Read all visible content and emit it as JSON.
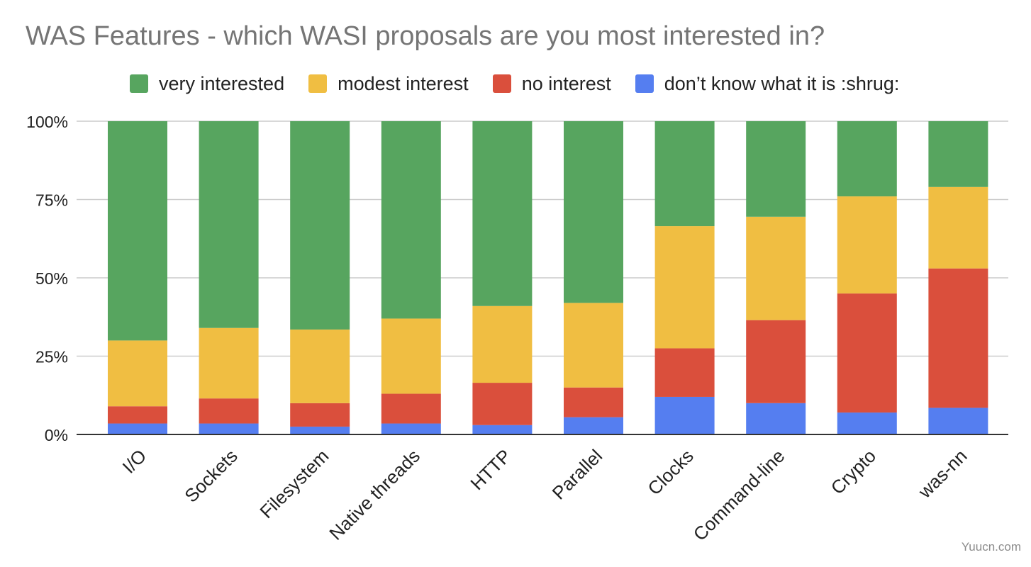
{
  "chart_data": {
    "type": "bar",
    "stacked": true,
    "percent": true,
    "title": "WAS Features - which WASI proposals are you most interested in?",
    "categories": [
      "I/O",
      "Sockets",
      "Filesystem",
      "Native threads",
      "HTTP",
      "Parallel",
      "Clocks",
      "Command-line",
      "Crypto",
      "was-nn"
    ],
    "series": [
      {
        "name": "don’t know what it is :shrug:",
        "color": "#557ef0",
        "values": [
          3.5,
          3.5,
          2.5,
          3.5,
          3,
          5.5,
          12,
          10,
          7,
          8.5
        ]
      },
      {
        "name": "no interest",
        "color": "#da4f3c",
        "values": [
          5.5,
          8,
          7.5,
          9.5,
          13.5,
          9.5,
          15.5,
          26.5,
          38,
          44.5
        ]
      },
      {
        "name": "modest interest",
        "color": "#f0be42",
        "values": [
          21,
          22.5,
          23.5,
          24,
          24.5,
          27,
          39,
          33,
          31,
          26
        ]
      },
      {
        "name": "very interested",
        "color": "#57a55f",
        "values": [
          70,
          66,
          66.5,
          63,
          59,
          58,
          33.5,
          30.5,
          24,
          21
        ]
      }
    ],
    "legend_order": [
      "very interested",
      "modest interest",
      "no interest",
      "don’t know what it is :shrug:"
    ],
    "yticks": [
      "0%",
      "25%",
      "50%",
      "75%",
      "100%"
    ],
    "ylim": [
      0,
      100
    ],
    "grid": true,
    "legend_position": "top"
  },
  "watermark": "Yuucn.com"
}
